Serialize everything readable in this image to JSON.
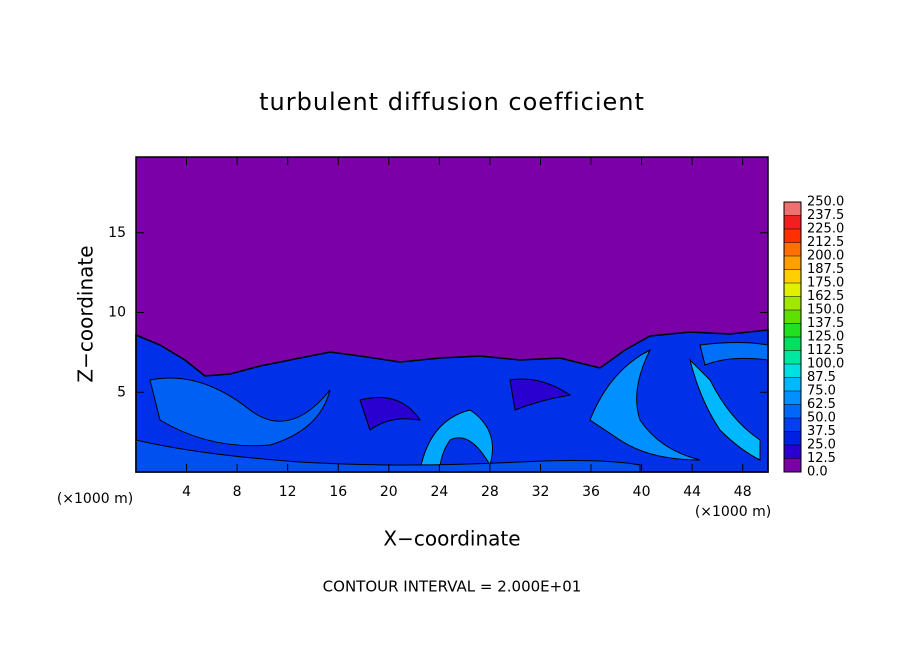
{
  "chart_data": {
    "type": "contour",
    "title": "turbulent diffusion coefficient",
    "xlabel": "X−coordinate",
    "ylabel": "Z−coordinate",
    "x_unit": "(×1000 m)",
    "note": "CONTOUR INTERVAL = 2.000E+01",
    "xlim": [
      0,
      50
    ],
    "ylim": [
      0,
      19.75
    ],
    "xticks": [
      4,
      8,
      12,
      16,
      20,
      24,
      28,
      32,
      36,
      40,
      44,
      48
    ],
    "yticks": [
      5,
      10,
      15
    ],
    "colorbar": {
      "ticks": [
        {
          "value": 0,
          "label": "0.0"
        },
        {
          "value": 12.5,
          "label": "12.5"
        },
        {
          "value": 25,
          "label": "25.0"
        },
        {
          "value": 37.5,
          "label": "37.5"
        },
        {
          "value": 50,
          "label": "50.0"
        },
        {
          "value": 62.5,
          "label": "62.5"
        },
        {
          "value": 75,
          "label": "75.0"
        },
        {
          "value": 87.5,
          "label": "87.5"
        },
        {
          "value": 100,
          "label": "100.0"
        },
        {
          "value": 112.5,
          "label": "112.5"
        },
        {
          "value": 125,
          "label": "125.0"
        },
        {
          "value": 137.5,
          "label": "137.5"
        },
        {
          "value": 150,
          "label": "150.0"
        },
        {
          "value": 162.5,
          "label": "162.5"
        },
        {
          "value": 175,
          "label": "175.0"
        },
        {
          "value": 187.5,
          "label": "187.5"
        },
        {
          "value": 200,
          "label": "200.0"
        },
        {
          "value": 212.5,
          "label": "212.5"
        },
        {
          "value": 225,
          "label": "225.0"
        },
        {
          "value": 237.5,
          "label": "237.5"
        },
        {
          "value": 250,
          "label": "250.0"
        }
      ],
      "colors": [
        "#7b00a8",
        "#2a00d0",
        "#0020e0",
        "#0040f0",
        "#0068f8",
        "#0090ff",
        "#00b8ff",
        "#00e0e0",
        "#00e8a0",
        "#00e060",
        "#20e020",
        "#60e000",
        "#a0e800",
        "#e0f000",
        "#ffd000",
        "#ffa000",
        "#ff7000",
        "#ff3000",
        "#f02020",
        "#f07070"
      ]
    }
  }
}
